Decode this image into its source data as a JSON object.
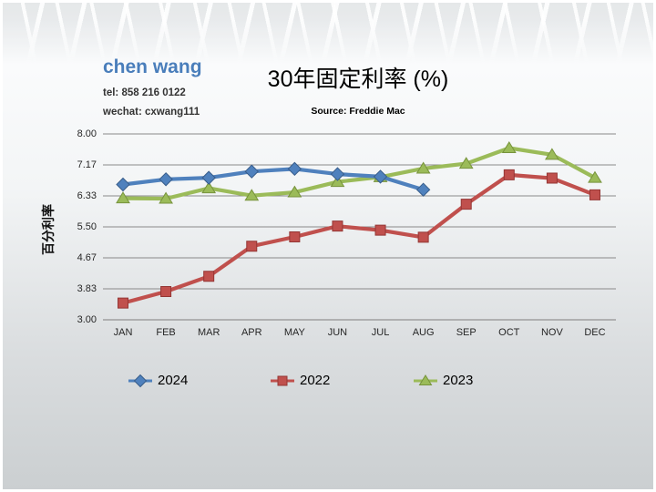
{
  "header": {
    "contact_name": "chen wang",
    "contact_tel": "tel: 858 216 0122",
    "contact_wechat": "wechat: cxwang111"
  },
  "chart_data": {
    "type": "line",
    "title": "30年固定利率 (%)",
    "source": "Source: Freddie Mac",
    "ylabel": "百分利率",
    "xlabel": "",
    "x_categories": [
      "JAN",
      "FEB",
      "MAR",
      "APR",
      "MAY",
      "JUN",
      "JUL",
      "AUG",
      "SEP",
      "OCT",
      "NOV",
      "DEC"
    ],
    "y_tick_labels": [
      "8.00",
      "7.17",
      "6.33",
      "5.50",
      "4.67",
      "3.83",
      "3.00"
    ],
    "ylim": [
      3.0,
      8.0
    ],
    "grid": true,
    "legend_position": "bottom",
    "legend_display_order": [
      "2024",
      "2022",
      "2023"
    ],
    "series": [
      {
        "name": "2024",
        "marker": "diamond",
        "color": "#4f81bd",
        "marker_border": "#385d8a",
        "values": [
          6.64,
          6.78,
          6.82,
          6.99,
          7.06,
          6.92,
          6.85,
          6.5,
          null,
          null,
          null,
          null
        ]
      },
      {
        "name": "2022",
        "marker": "square",
        "color": "#c0504d",
        "marker_border": "#943634",
        "values": [
          3.45,
          3.76,
          4.17,
          4.98,
          5.23,
          5.52,
          5.41,
          5.22,
          6.11,
          6.9,
          6.81,
          6.36
        ]
      },
      {
        "name": "2023",
        "marker": "triangle",
        "color": "#9bbb59",
        "marker_border": "#77933c",
        "values": [
          6.27,
          6.26,
          6.54,
          6.34,
          6.43,
          6.71,
          6.84,
          7.07,
          7.2,
          7.62,
          7.44,
          6.82
        ]
      }
    ],
    "colors": {
      "gridline": "#8a8a8a",
      "axis_line": "#7f7f7f"
    }
  }
}
